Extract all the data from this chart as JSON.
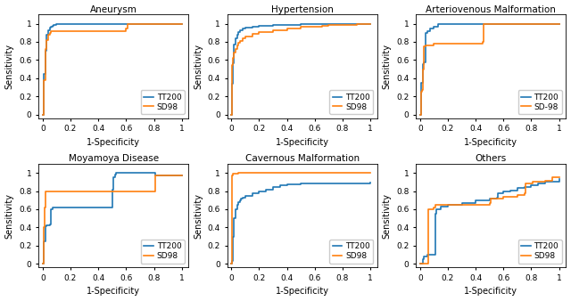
{
  "titles": [
    "Aneurysm",
    "Hypertension",
    "Arteriovenous Malformation",
    "Moyamoya Disease",
    "Cavernous Malformation",
    "Others"
  ],
  "legend_labels": [
    [
      "TT200",
      "SD98"
    ],
    [
      "TT200",
      "SD98"
    ],
    [
      "TT200",
      "SD-98"
    ],
    [
      "TT200",
      "SD98"
    ],
    [
      "TT200",
      "SD98"
    ],
    [
      "TT200",
      "SD98"
    ]
  ],
  "blue_color": "#1f77b4",
  "orange_color": "#ff7f0e",
  "curves": {
    "Aneurysm": {
      "TT200": [
        [
          0,
          0
        ],
        [
          0.01,
          0.45
        ],
        [
          0.02,
          0.7
        ],
        [
          0.025,
          0.8
        ],
        [
          0.03,
          0.88
        ],
        [
          0.04,
          0.93
        ],
        [
          0.05,
          0.96
        ],
        [
          0.06,
          0.97
        ],
        [
          0.07,
          0.98
        ],
        [
          0.08,
          0.99
        ],
        [
          0.1,
          0.995
        ],
        [
          0.15,
          1.0
        ],
        [
          1.0,
          1.0
        ]
      ],
      "SD98": [
        [
          0,
          0
        ],
        [
          0.01,
          0.38
        ],
        [
          0.02,
          0.72
        ],
        [
          0.03,
          0.82
        ],
        [
          0.04,
          0.88
        ],
        [
          0.05,
          0.9
        ],
        [
          0.06,
          0.92
        ],
        [
          0.6,
          0.95
        ],
        [
          0.61,
          1.0
        ],
        [
          1.0,
          1.0
        ]
      ]
    },
    "Hypertension": {
      "TT200": [
        [
          0,
          0
        ],
        [
          0.005,
          0.34
        ],
        [
          0.01,
          0.56
        ],
        [
          0.015,
          0.74
        ],
        [
          0.02,
          0.77
        ],
        [
          0.03,
          0.84
        ],
        [
          0.04,
          0.88
        ],
        [
          0.05,
          0.91
        ],
        [
          0.06,
          0.93
        ],
        [
          0.08,
          0.95
        ],
        [
          0.1,
          0.96
        ],
        [
          0.15,
          0.97
        ],
        [
          0.2,
          0.975
        ],
        [
          0.25,
          0.98
        ],
        [
          0.3,
          0.985
        ],
        [
          0.4,
          0.99
        ],
        [
          0.5,
          0.995
        ],
        [
          0.65,
          0.995
        ],
        [
          0.7,
          1.0
        ],
        [
          1.0,
          1.0
        ]
      ],
      "SD98": [
        [
          0,
          0
        ],
        [
          0.005,
          0.54
        ],
        [
          0.01,
          0.62
        ],
        [
          0.015,
          0.65
        ],
        [
          0.02,
          0.68
        ],
        [
          0.03,
          0.72
        ],
        [
          0.04,
          0.76
        ],
        [
          0.05,
          0.79
        ],
        [
          0.06,
          0.81
        ],
        [
          0.08,
          0.84
        ],
        [
          0.1,
          0.86
        ],
        [
          0.15,
          0.89
        ],
        [
          0.2,
          0.91
        ],
        [
          0.3,
          0.93
        ],
        [
          0.4,
          0.95
        ],
        [
          0.5,
          0.965
        ],
        [
          0.65,
          0.975
        ],
        [
          0.7,
          0.985
        ],
        [
          0.8,
          0.99
        ],
        [
          0.9,
          0.995
        ],
        [
          1.0,
          1.0
        ]
      ]
    },
    "Arteriovenous Malformation": {
      "TT200": [
        [
          0,
          0
        ],
        [
          0.01,
          0.35
        ],
        [
          0.02,
          0.55
        ],
        [
          0.03,
          0.57
        ],
        [
          0.04,
          0.9
        ],
        [
          0.05,
          0.92
        ],
        [
          0.07,
          0.95
        ],
        [
          0.1,
          0.97
        ],
        [
          0.13,
          1.0
        ],
        [
          0.45,
          1.0
        ],
        [
          1.0,
          1.0
        ]
      ],
      "SD-98": [
        [
          0,
          0
        ],
        [
          0.01,
          0.25
        ],
        [
          0.015,
          0.27
        ],
        [
          0.02,
          0.5
        ],
        [
          0.03,
          0.75
        ],
        [
          0.04,
          0.76
        ],
        [
          0.1,
          0.78
        ],
        [
          0.45,
          0.8
        ],
        [
          0.46,
          1.0
        ],
        [
          1.0,
          1.0
        ]
      ]
    },
    "Moyamoya Disease": {
      "TT200": [
        [
          0,
          0
        ],
        [
          0.01,
          0.25
        ],
        [
          0.02,
          0.41
        ],
        [
          0.03,
          0.42
        ],
        [
          0.05,
          0.43
        ],
        [
          0.06,
          0.6
        ],
        [
          0.07,
          0.62
        ],
        [
          0.5,
          0.82
        ],
        [
          0.51,
          0.95
        ],
        [
          0.52,
          0.98
        ],
        [
          0.53,
          1.0
        ],
        [
          0.8,
          1.0
        ],
        [
          0.81,
          0.97
        ],
        [
          1.0,
          0.97
        ]
      ],
      "SD98": [
        [
          0,
          0
        ],
        [
          0.005,
          0.02
        ],
        [
          0.01,
          0.4
        ],
        [
          0.015,
          0.62
        ],
        [
          0.02,
          0.8
        ],
        [
          0.03,
          0.8
        ],
        [
          0.8,
          0.8
        ],
        [
          0.81,
          0.97
        ],
        [
          1.0,
          0.97
        ]
      ]
    },
    "Cavernous Malformation": {
      "TT200": [
        [
          0,
          0
        ],
        [
          0.005,
          0.03
        ],
        [
          0.01,
          0.3
        ],
        [
          0.02,
          0.5
        ],
        [
          0.03,
          0.6
        ],
        [
          0.04,
          0.65
        ],
        [
          0.05,
          0.68
        ],
        [
          0.06,
          0.7
        ],
        [
          0.07,
          0.72
        ],
        [
          0.08,
          0.73
        ],
        [
          0.1,
          0.75
        ],
        [
          0.15,
          0.78
        ],
        [
          0.2,
          0.8
        ],
        [
          0.25,
          0.82
        ],
        [
          0.3,
          0.845
        ],
        [
          0.35,
          0.86
        ],
        [
          0.4,
          0.875
        ],
        [
          0.5,
          0.885
        ],
        [
          1.0,
          0.89
        ]
      ],
      "SD98": [
        [
          0,
          0
        ],
        [
          0.005,
          0.97
        ],
        [
          0.01,
          0.99
        ],
        [
          0.05,
          1.0
        ],
        [
          1.0,
          1.0
        ]
      ]
    },
    "Others": {
      "TT200": [
        [
          0,
          0
        ],
        [
          0.01,
          0.0
        ],
        [
          0.02,
          0.05
        ],
        [
          0.03,
          0.08
        ],
        [
          0.05,
          0.1
        ],
        [
          0.1,
          0.1
        ],
        [
          0.11,
          0.55
        ],
        [
          0.12,
          0.6
        ],
        [
          0.15,
          0.63
        ],
        [
          0.2,
          0.65
        ],
        [
          0.3,
          0.67
        ],
        [
          0.4,
          0.7
        ],
        [
          0.5,
          0.72
        ],
        [
          0.55,
          0.73
        ],
        [
          0.56,
          0.78
        ],
        [
          0.6,
          0.8
        ],
        [
          0.65,
          0.81
        ],
        [
          0.7,
          0.83
        ],
        [
          0.75,
          0.84
        ],
        [
          0.8,
          0.86
        ],
        [
          0.85,
          0.88
        ],
        [
          0.9,
          0.9
        ],
        [
          1.0,
          0.93
        ]
      ],
      "SD98": [
        [
          0,
          0
        ],
        [
          0.05,
          0.0
        ],
        [
          0.06,
          0.6
        ],
        [
          0.1,
          0.62
        ],
        [
          0.11,
          0.65
        ],
        [
          0.5,
          0.67
        ],
        [
          0.51,
          0.72
        ],
        [
          0.6,
          0.74
        ],
        [
          0.7,
          0.76
        ],
        [
          0.75,
          0.78
        ],
        [
          0.76,
          0.88
        ],
        [
          0.8,
          0.88
        ],
        [
          0.81,
          0.9
        ],
        [
          0.9,
          0.91
        ],
        [
          0.95,
          0.95
        ],
        [
          1.0,
          0.95
        ]
      ]
    }
  },
  "figsize": [
    6.4,
    3.38
  ],
  "dpi": 100,
  "xticks": [
    0,
    0.2,
    0.4,
    0.6,
    0.8,
    1.0
  ],
  "yticks": [
    0.0,
    0.2,
    0.4,
    0.6,
    0.8,
    1.0
  ],
  "xlim": [
    -0.03,
    1.05
  ],
  "ylim": [
    -0.04,
    1.1
  ]
}
